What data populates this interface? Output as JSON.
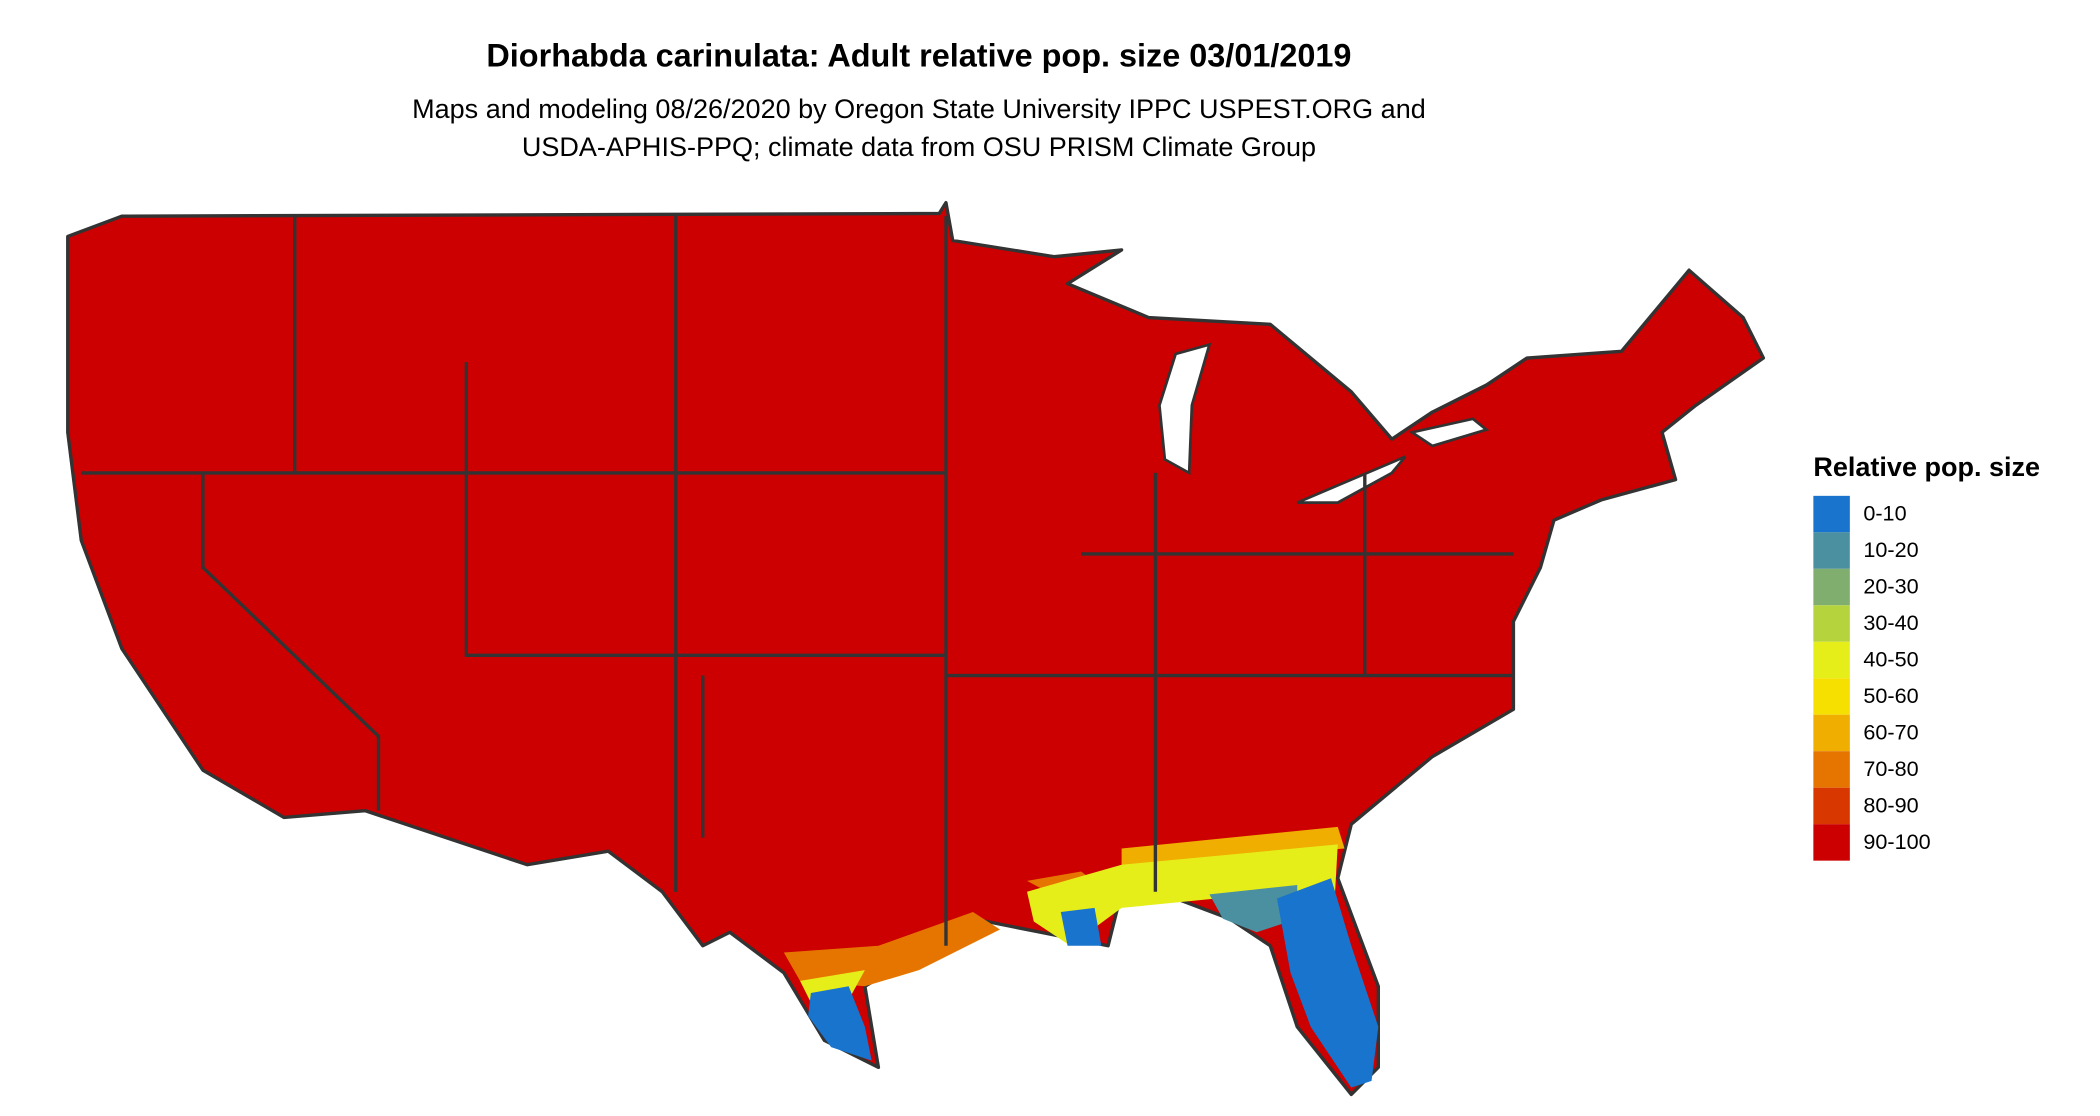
{
  "title": "Diorhabda carinulata: Adult relative pop. size 03/01/2019",
  "subtitle": [
    "Maps and modeling 08/26/2020 by Oregon State University IPPC USPEST.ORG and",
    "USDA-APHIS-PPQ; climate data from OSU PRISM Climate Group"
  ],
  "legend": {
    "title": "Relative pop. size",
    "items": [
      {
        "label": "0-10",
        "color": "#1874cd"
      },
      {
        "label": "10-20",
        "color": "#4a90a0"
      },
      {
        "label": "20-30",
        "color": "#7fae6f"
      },
      {
        "label": "30-40",
        "color": "#b5d33c"
      },
      {
        "label": "40-50",
        "color": "#e6ee1a"
      },
      {
        "label": "50-60",
        "color": "#f5e000"
      },
      {
        "label": "60-70",
        "color": "#efae00"
      },
      {
        "label": "70-80",
        "color": "#e67500"
      },
      {
        "label": "80-90",
        "color": "#d83800"
      },
      {
        "label": "90-100",
        "color": "#cc0000"
      }
    ]
  }
}
